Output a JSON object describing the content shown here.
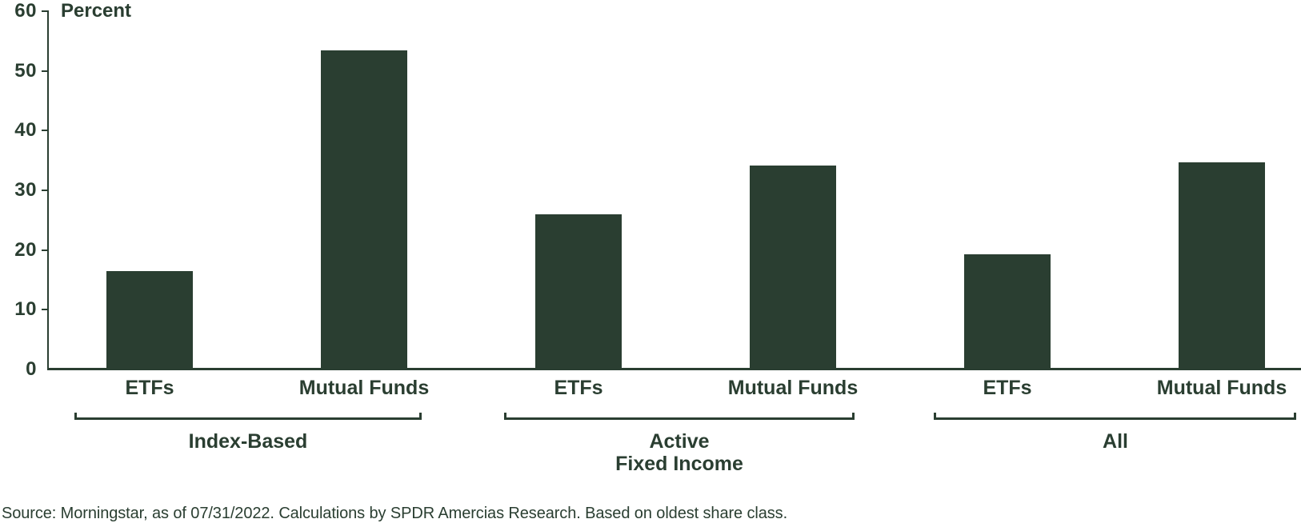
{
  "chart_data": {
    "type": "bar",
    "title": "",
    "ylabel": "Percent",
    "xlabel": "",
    "ylim": [
      0,
      60
    ],
    "yticks": [
      0,
      10,
      20,
      30,
      40,
      50,
      60
    ],
    "grid": false,
    "legend": "none",
    "categories": [
      "ETFs",
      "Mutual Funds",
      "ETFs",
      "Mutual Funds",
      "ETFs",
      "Mutual Funds"
    ],
    "values": [
      16.5,
      53.5,
      26.0,
      34.2,
      19.3,
      34.7
    ],
    "group_labels": [
      "Index-Based",
      "Active Fixed Income",
      "All"
    ],
    "groups": [
      {
        "label_lines": [
          "Index-Based"
        ],
        "bars": [
          {
            "category": "ETFs",
            "value": 16.5
          },
          {
            "category": "Mutual Funds",
            "value": 53.5
          }
        ]
      },
      {
        "label_lines": [
          "Active",
          "Fixed Income"
        ],
        "bars": [
          {
            "category": "ETFs",
            "value": 26.0
          },
          {
            "category": "Mutual Funds",
            "value": 34.2
          }
        ]
      },
      {
        "label_lines": [
          "All"
        ],
        "bars": [
          {
            "category": "ETFs",
            "value": 19.3
          },
          {
            "category": "Mutual Funds",
            "value": 34.7
          }
        ]
      }
    ],
    "colors": {
      "bar": "#2a3e31",
      "ink": "#2a3e31",
      "background": "#ffffff"
    }
  },
  "footer": {
    "source": "Source: Morningstar, as of 07/31/2022. Calculations by SPDR Amercias Research. Based on oldest share class."
  }
}
